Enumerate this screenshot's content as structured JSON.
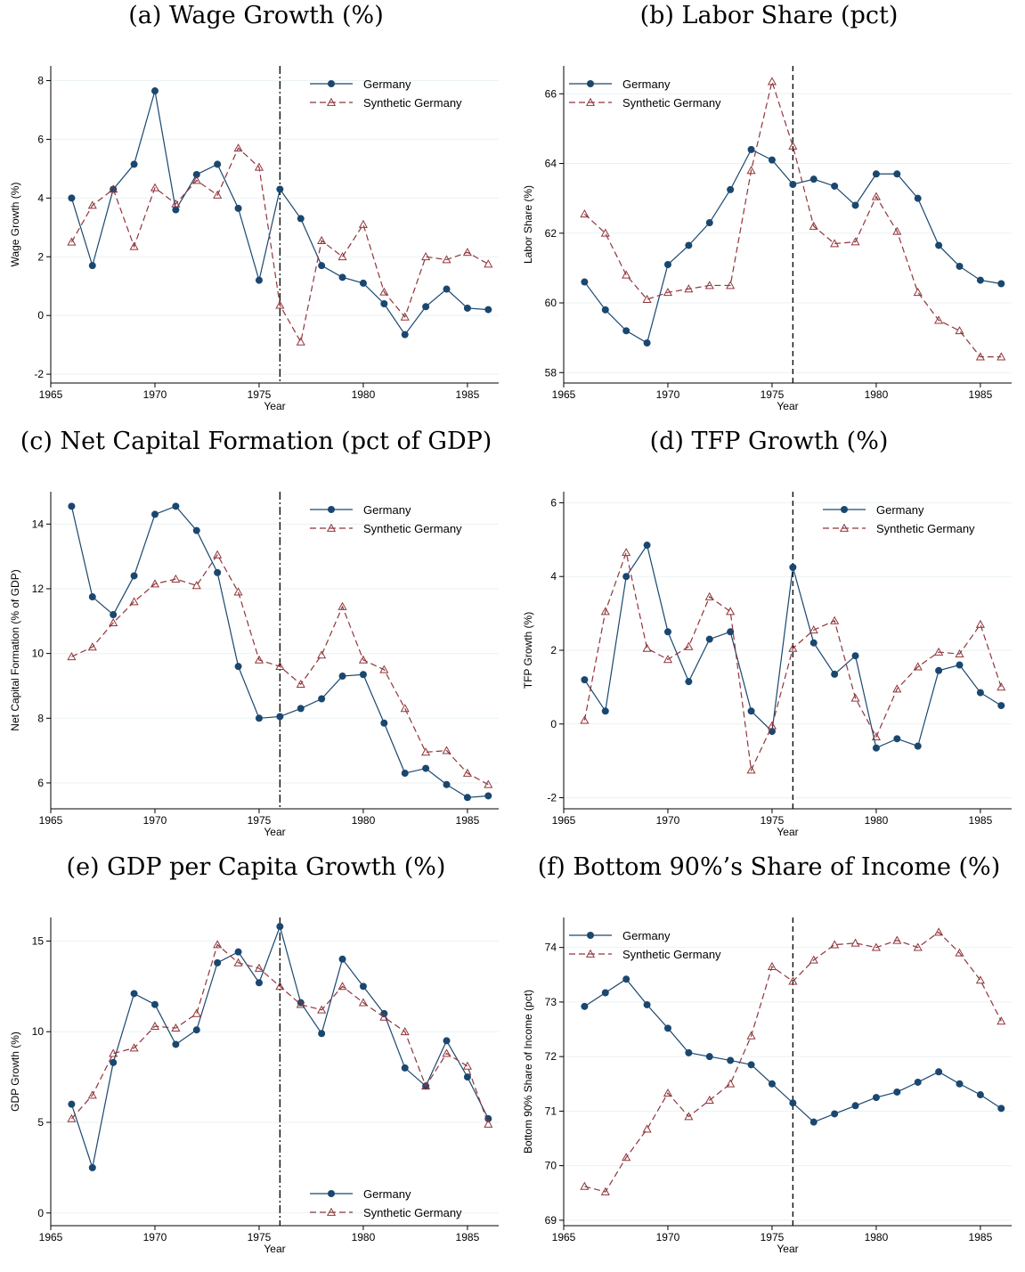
{
  "chart_data": [
    {
      "id": "a",
      "type": "line",
      "title": "(a) Wage Growth (%)",
      "xlabel": "Year",
      "ylabel": "Wage Growth (%)",
      "xlim": [
        1965,
        1986.5
      ],
      "ylim": [
        -2.3,
        8.5
      ],
      "xticks": [
        1965,
        1970,
        1975,
        1980,
        1985
      ],
      "yticks": [
        -2,
        0,
        2,
        4,
        6,
        8
      ],
      "vline": 1976,
      "vline_style": "dash-dot",
      "legend": "top-right",
      "x": [
        1966,
        1967,
        1968,
        1969,
        1970,
        1971,
        1972,
        1973,
        1974,
        1975,
        1976,
        1977,
        1978,
        1979,
        1980,
        1981,
        1982,
        1983,
        1984,
        1985,
        1986
      ],
      "series": [
        {
          "name": "Germany",
          "values": [
            4.0,
            1.7,
            4.3,
            5.15,
            7.65,
            3.6,
            4.8,
            5.15,
            3.65,
            1.2,
            4.3,
            3.3,
            1.7,
            1.3,
            1.1,
            0.4,
            -0.65,
            0.3,
            0.9,
            0.25,
            0.2
          ]
        },
        {
          "name": "Synthetic Germany",
          "values": [
            2.5,
            3.75,
            4.3,
            2.35,
            4.35,
            3.8,
            4.6,
            4.1,
            5.7,
            5.05,
            0.35,
            -0.9,
            2.55,
            2.0,
            3.1,
            0.8,
            -0.05,
            2.0,
            1.9,
            2.15,
            1.75
          ]
        }
      ]
    },
    {
      "id": "b",
      "type": "line",
      "title": "(b) Labor Share (pct)",
      "xlabel": "Year",
      "ylabel": "Labor Share (%)",
      "xlim": [
        1965,
        1986.5
      ],
      "ylim": [
        57.7,
        66.8
      ],
      "xticks": [
        1965,
        1970,
        1975,
        1980,
        1985
      ],
      "yticks": [
        58,
        60,
        62,
        64,
        66
      ],
      "vline": 1976,
      "vline_style": "dash",
      "legend": "top-left",
      "x": [
        1966,
        1967,
        1968,
        1969,
        1970,
        1971,
        1972,
        1973,
        1974,
        1975,
        1976,
        1977,
        1978,
        1979,
        1980,
        1981,
        1982,
        1983,
        1984,
        1985,
        1986
      ],
      "series": [
        {
          "name": "Germany",
          "values": [
            60.6,
            59.8,
            59.2,
            58.85,
            61.1,
            61.65,
            62.3,
            63.25,
            64.4,
            64.1,
            63.4,
            63.55,
            63.35,
            62.8,
            63.7,
            63.7,
            63.0,
            61.65,
            61.05,
            60.65,
            60.55
          ]
        },
        {
          "name": "Synthetic Germany",
          "values": [
            62.55,
            62.0,
            60.8,
            60.1,
            60.3,
            60.4,
            60.5,
            60.5,
            63.8,
            66.35,
            64.5,
            62.2,
            61.7,
            61.75,
            63.05,
            62.05,
            60.3,
            59.5,
            59.2,
            58.45,
            58.45
          ]
        }
      ]
    },
    {
      "id": "c",
      "type": "line",
      "title": "(c) Net Capital Formation (pct of GDP)",
      "xlabel": "Year",
      "ylabel": "Net Capital Formation (% of GDP)",
      "xlim": [
        1965,
        1986.5
      ],
      "ylim": [
        5.2,
        15.0
      ],
      "xticks": [
        1965,
        1970,
        1975,
        1980,
        1985
      ],
      "yticks": [
        6,
        8,
        10,
        12,
        14
      ],
      "vline": 1976,
      "vline_style": "dash-dot",
      "legend": "top-right",
      "x": [
        1966,
        1967,
        1968,
        1969,
        1970,
        1971,
        1972,
        1973,
        1974,
        1975,
        1976,
        1977,
        1978,
        1979,
        1980,
        1981,
        1982,
        1983,
        1984,
        1985,
        1986
      ],
      "series": [
        {
          "name": "Germany",
          "values": [
            14.55,
            11.75,
            11.2,
            12.4,
            14.3,
            14.55,
            13.8,
            12.5,
            9.6,
            8.0,
            8.05,
            8.3,
            8.6,
            9.3,
            9.35,
            7.85,
            6.3,
            6.45,
            5.95,
            5.55,
            5.6
          ]
        },
        {
          "name": "Synthetic Germany",
          "values": [
            9.9,
            10.2,
            10.95,
            11.6,
            12.15,
            12.3,
            12.1,
            13.05,
            11.9,
            9.8,
            9.6,
            9.05,
            9.95,
            11.45,
            9.8,
            9.5,
            8.3,
            6.95,
            7.0,
            6.3,
            5.95
          ]
        }
      ]
    },
    {
      "id": "d",
      "type": "line",
      "title": "(d) TFP Growth (%)",
      "xlabel": "Year",
      "ylabel": "TFP Growth (%)",
      "xlim": [
        1965,
        1986.5
      ],
      "ylim": [
        -2.3,
        6.3
      ],
      "xticks": [
        1965,
        1970,
        1975,
        1980,
        1985
      ],
      "yticks": [
        -2,
        0,
        2,
        4,
        6
      ],
      "vline": 1976,
      "vline_style": "dash",
      "legend": "top-right",
      "x": [
        1966,
        1967,
        1968,
        1969,
        1970,
        1971,
        1972,
        1973,
        1974,
        1975,
        1976,
        1977,
        1978,
        1979,
        1980,
        1981,
        1982,
        1983,
        1984,
        1985,
        1986
      ],
      "series": [
        {
          "name": "Germany",
          "values": [
            1.2,
            0.35,
            4.0,
            4.85,
            2.5,
            1.15,
            2.3,
            2.5,
            0.35,
            -0.2,
            4.25,
            2.2,
            1.35,
            1.85,
            -0.65,
            -0.4,
            -0.6,
            1.45,
            1.6,
            0.85,
            0.5
          ]
        },
        {
          "name": "Synthetic Germany",
          "values": [
            0.1,
            3.05,
            4.65,
            2.05,
            1.75,
            2.1,
            3.45,
            3.05,
            -1.25,
            -0.05,
            2.05,
            2.55,
            2.8,
            0.7,
            -0.35,
            0.95,
            1.55,
            1.95,
            1.9,
            2.7,
            1.0
          ]
        }
      ]
    },
    {
      "id": "e",
      "type": "line",
      "title": "(e) GDP per Capita Growth (%)",
      "xlabel": "Year",
      "ylabel": "GDP Growth (%)",
      "xlim": [
        1965,
        1986.5
      ],
      "ylim": [
        -0.7,
        16.3
      ],
      "xticks": [
        1965,
        1970,
        1975,
        1980,
        1985
      ],
      "yticks": [
        0,
        5,
        10,
        15
      ],
      "vline": 1976,
      "vline_style": "dash-dot",
      "legend": "bottom-right",
      "x": [
        1966,
        1967,
        1968,
        1969,
        1970,
        1971,
        1972,
        1973,
        1974,
        1975,
        1976,
        1977,
        1978,
        1979,
        1980,
        1981,
        1982,
        1983,
        1984,
        1985,
        1986
      ],
      "series": [
        {
          "name": "Germany",
          "values": [
            6.0,
            2.5,
            8.3,
            12.1,
            11.5,
            9.3,
            10.1,
            13.8,
            14.4,
            12.7,
            15.8,
            11.6,
            9.9,
            14.0,
            12.5,
            11.0,
            8.0,
            7.0,
            9.5,
            7.5,
            5.2
          ]
        },
        {
          "name": "Synthetic Germany",
          "values": [
            5.2,
            6.5,
            8.8,
            9.1,
            10.3,
            10.2,
            11.0,
            14.8,
            13.8,
            13.5,
            12.5,
            11.5,
            11.2,
            12.5,
            11.6,
            10.8,
            10.0,
            7.0,
            8.8,
            8.1,
            4.9
          ]
        }
      ]
    },
    {
      "id": "f",
      "type": "line",
      "title": "(f) Bottom 90%’s Share of Income (%)",
      "xlabel": "Year",
      "ylabel": "Bottom 90% Share of Income (pct)",
      "xlim": [
        1965,
        1986.5
      ],
      "ylim": [
        68.9,
        74.55
      ],
      "xticks": [
        1965,
        1970,
        1975,
        1980,
        1985
      ],
      "yticks": [
        69,
        70,
        71,
        72,
        73,
        74
      ],
      "vline": 1976,
      "vline_style": "dash",
      "legend": "top-left",
      "x": [
        1966,
        1967,
        1968,
        1969,
        1970,
        1971,
        1972,
        1973,
        1974,
        1975,
        1976,
        1977,
        1978,
        1979,
        1980,
        1981,
        1982,
        1983,
        1984,
        1985,
        1986
      ],
      "series": [
        {
          "name": "Germany",
          "values": [
            72.92,
            73.17,
            73.42,
            72.95,
            72.52,
            72.07,
            72.0,
            71.93,
            71.85,
            71.5,
            71.15,
            70.8,
            70.95,
            71.1,
            71.25,
            71.35,
            71.53,
            71.72,
            71.5,
            71.3,
            71.05
          ]
        },
        {
          "name": "Synthetic Germany",
          "values": [
            69.62,
            69.52,
            70.15,
            70.67,
            71.33,
            70.9,
            71.2,
            71.5,
            72.38,
            73.65,
            73.38,
            73.77,
            74.05,
            74.08,
            74.0,
            74.13,
            74.0,
            74.28,
            73.9,
            73.4,
            72.65
          ]
        }
      ]
    }
  ],
  "colors": {
    "germany": "#1a476f",
    "synthetic": "#90353b",
    "grid": "#eaf2f3",
    "axis": "#000000"
  }
}
